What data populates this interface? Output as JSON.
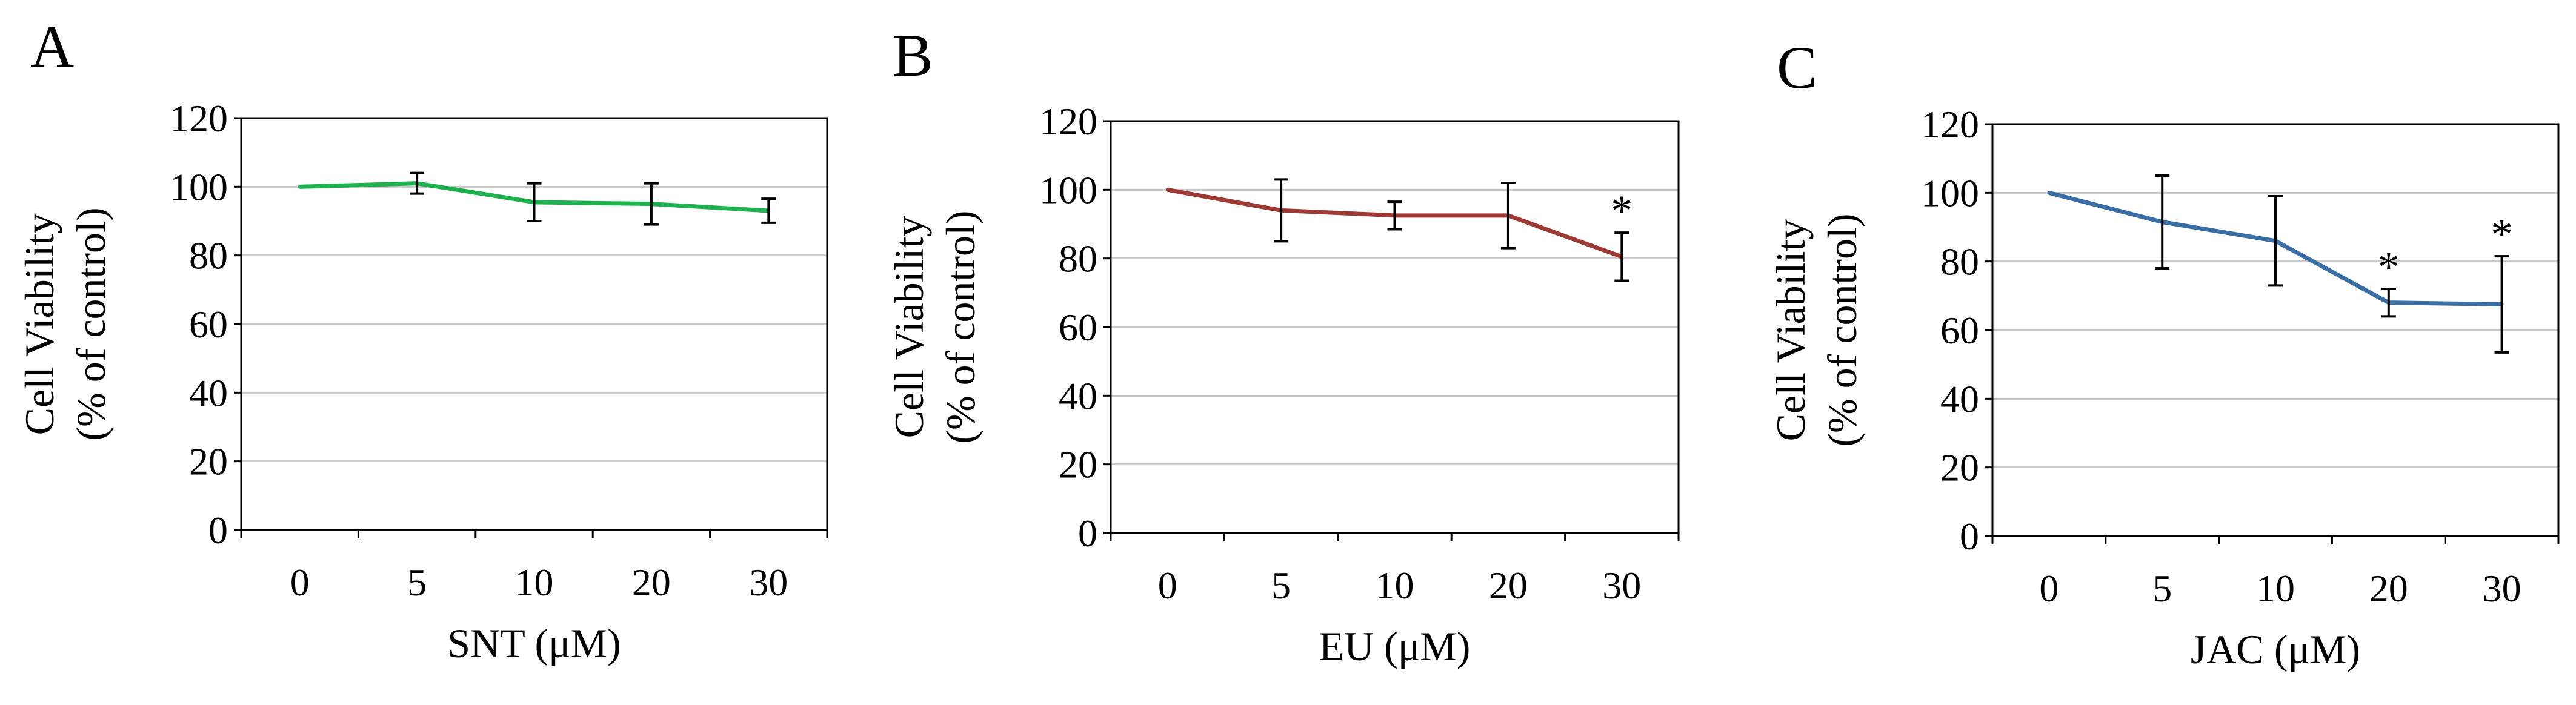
{
  "chart_data": [
    {
      "panel_label": "A",
      "type": "line",
      "categories": [
        "0",
        "5",
        "10",
        "20",
        "30"
      ],
      "values": [
        100,
        101,
        95.5,
        95,
        93
      ],
      "errors": [
        0,
        3,
        5.5,
        6,
        3.5
      ],
      "significant": [
        false,
        false,
        false,
        false,
        false
      ],
      "color": "#1fb050",
      "xlabel": "SNT (μM)",
      "ylabel_line1": "Cell Viability",
      "ylabel_line2": "(% of control)",
      "ylim": [
        0,
        120
      ],
      "yticks": [
        0,
        20,
        40,
        60,
        80,
        100,
        120
      ],
      "ytick_labels": [
        "0",
        "20",
        "40",
        "60",
        "80",
        "100",
        "120"
      ],
      "grid": true,
      "significance_marker": "*"
    },
    {
      "panel_label": "B",
      "type": "line",
      "categories": [
        "0",
        "5",
        "10",
        "20",
        "30"
      ],
      "values": [
        100,
        94,
        92.5,
        92.5,
        80.5
      ],
      "errors": [
        0,
        9,
        4,
        9.5,
        7
      ],
      "significant": [
        false,
        false,
        false,
        false,
        true
      ],
      "color": "#9e3a35",
      "xlabel": "EU (μM)",
      "ylabel_line1": "Cell Viability",
      "ylabel_line2": "(% of control)",
      "ylim": [
        0,
        120
      ],
      "yticks": [
        0,
        20,
        40,
        60,
        80,
        100,
        120
      ],
      "ytick_labels": [
        "0",
        "20",
        "40",
        "60",
        "80",
        "100",
        "120"
      ],
      "grid": true,
      "significance_marker": "*"
    },
    {
      "panel_label": "C",
      "type": "line",
      "categories": [
        "0",
        "5",
        "10",
        "20",
        "30"
      ],
      "values": [
        100,
        91.5,
        86,
        68,
        67.5
      ],
      "errors": [
        0,
        13.5,
        13,
        4,
        14
      ],
      "significant": [
        false,
        false,
        false,
        true,
        true
      ],
      "color": "#3a6ea5",
      "xlabel": "JAC (μM)",
      "ylabel_line1": "Cell Viability",
      "ylabel_line2": "(% of control)",
      "ylim": [
        0,
        120
      ],
      "yticks": [
        0,
        20,
        40,
        60,
        80,
        100,
        120
      ],
      "ytick_labels": [
        "0",
        "20",
        "40",
        "60",
        "80",
        "100",
        "120"
      ],
      "grid": true,
      "significance_marker": "*"
    }
  ]
}
